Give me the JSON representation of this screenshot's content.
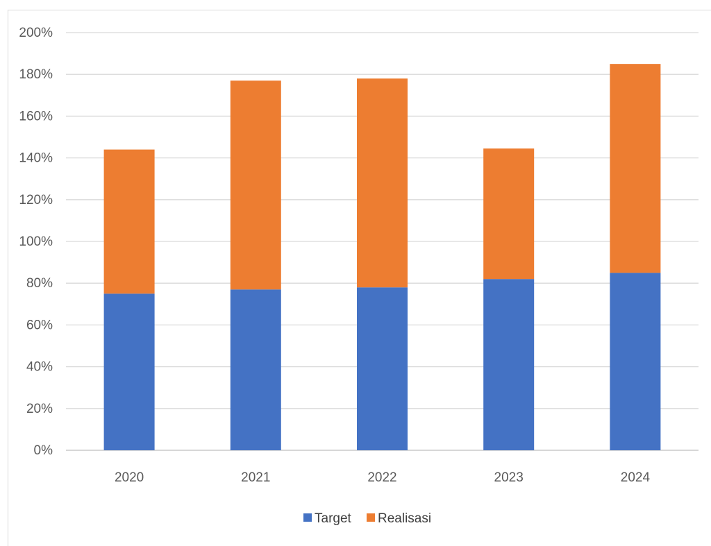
{
  "chart_data": {
    "type": "bar",
    "stacked": true,
    "categories": [
      "2020",
      "2021",
      "2022",
      "2023",
      "2024"
    ],
    "series": [
      {
        "name": "Target",
        "values": [
          75,
          77,
          78,
          82,
          85
        ],
        "color": "#4472C4"
      },
      {
        "name": "Realisasi",
        "values": [
          69,
          100,
          100,
          62.5,
          100
        ],
        "color": "#ED7D31"
      }
    ],
    "ylim": [
      0,
      200
    ],
    "yticks": [
      0,
      20,
      40,
      60,
      80,
      100,
      120,
      140,
      160,
      180,
      200
    ],
    "ytick_labels": [
      "0%",
      "20%",
      "40%",
      "60%",
      "80%",
      "100%",
      "120%",
      "140%",
      "160%",
      "180%",
      "200%"
    ],
    "grid": true,
    "legend_position": "bottom",
    "title": "",
    "xlabel": "",
    "ylabel": ""
  }
}
